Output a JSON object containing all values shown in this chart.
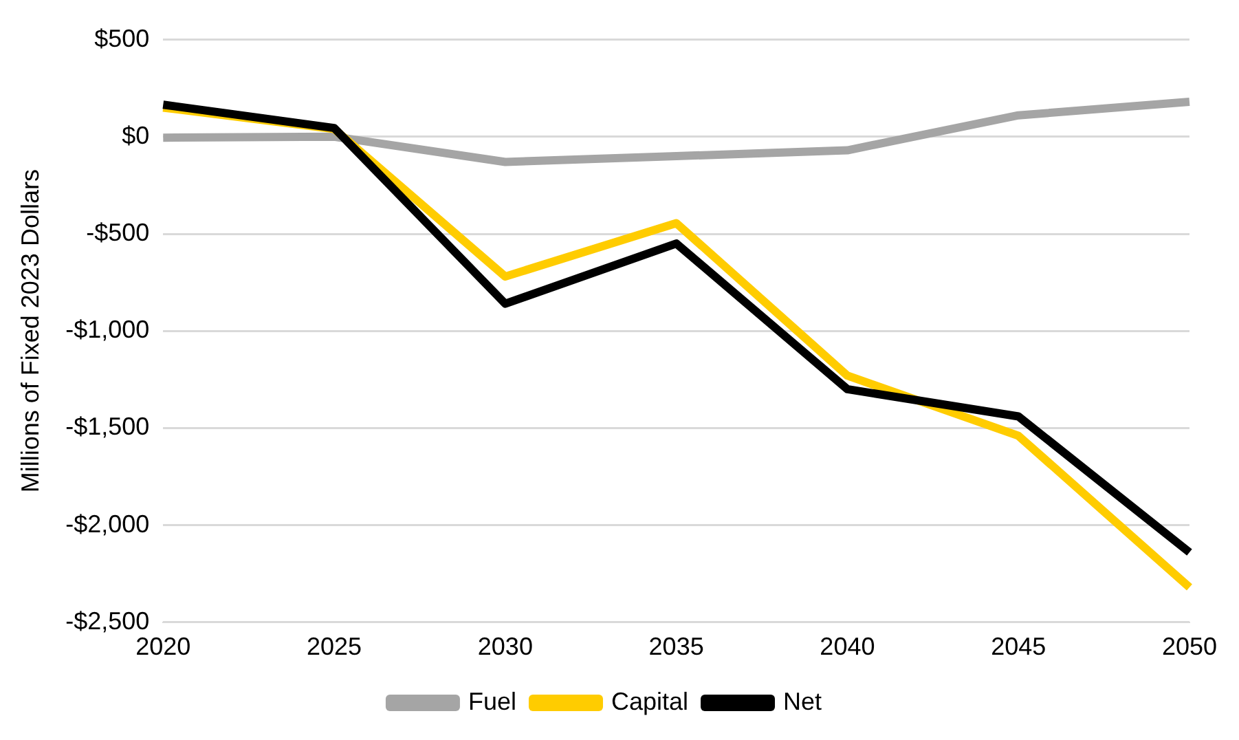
{
  "chart_data": {
    "type": "line",
    "ylabel": "Millions of Fixed 2023 Dollars",
    "categories": [
      "2020",
      "2025",
      "2030",
      "2035",
      "2040",
      "2045",
      "2050"
    ],
    "series": [
      {
        "name": "Fuel",
        "color": "#a5a5a5",
        "values": [
          -5,
          0,
          -130,
          -100,
          -70,
          110,
          180
        ]
      },
      {
        "name": "Capital",
        "color": "#ffcc00",
        "values": [
          150,
          40,
          -720,
          -445,
          -1230,
          -1540,
          -2320
        ]
      },
      {
        "name": "Net",
        "color": "#000000",
        "values": [
          165,
          45,
          -860,
          -550,
          -1300,
          -1440,
          -2140
        ]
      }
    ],
    "ylim": [
      -2500,
      500
    ],
    "yticks": [
      {
        "value": -2500,
        "label": "-$2,500"
      },
      {
        "value": -2000,
        "label": "-$2,000"
      },
      {
        "value": -1500,
        "label": "-$1,500"
      },
      {
        "value": -1000,
        "label": "-$1,000"
      },
      {
        "value": -500,
        "label": "-$500"
      },
      {
        "value": 0,
        "label": "$0"
      },
      {
        "value": 500,
        "label": "$500"
      }
    ],
    "grid": "y",
    "legend": "bottom",
    "marker": "none",
    "line_style": "solid"
  }
}
